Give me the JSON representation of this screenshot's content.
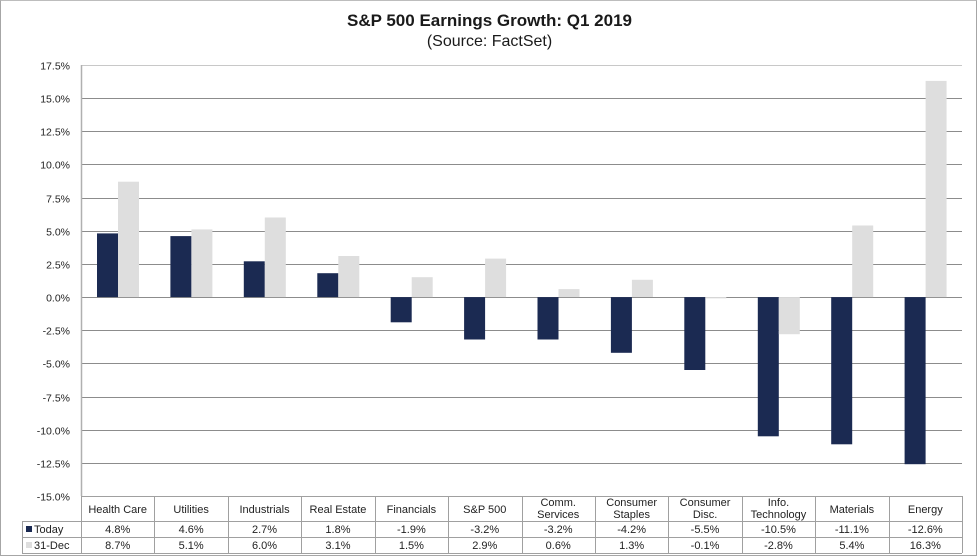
{
  "chart_data": {
    "type": "bar",
    "title": "S&P 500 Earnings Growth: Q1 2019",
    "subtitle": "(Source: FactSet)",
    "xlabel": "",
    "ylabel": "",
    "ylim": [
      -15.0,
      17.5
    ],
    "ytick_step": 2.5,
    "yticks": [
      "17.5%",
      "15.0%",
      "12.5%",
      "10.0%",
      "7.5%",
      "5.0%",
      "2.5%",
      "0.0%",
      "-2.5%",
      "-5.0%",
      "-7.5%",
      "-10.0%",
      "-12.5%",
      "-15.0%"
    ],
    "grid": true,
    "legend_placement": "data-table-left",
    "categories": [
      [
        "Health Care"
      ],
      [
        "Utilities"
      ],
      [
        "Industrials"
      ],
      [
        "Real Estate"
      ],
      [
        "Financials"
      ],
      [
        "S&P 500"
      ],
      [
        "Comm.",
        "Services"
      ],
      [
        "Consumer",
        "Staples"
      ],
      [
        "Consumer",
        "Disc."
      ],
      [
        "Info.",
        "Technology"
      ],
      [
        "Materials"
      ],
      [
        "Energy"
      ]
    ],
    "series": [
      {
        "name": "Today",
        "color": "#1b2a52",
        "values": [
          4.8,
          4.6,
          2.7,
          1.8,
          -1.9,
          -3.2,
          -3.2,
          -4.2,
          -5.5,
          -10.5,
          -11.1,
          -12.6
        ],
        "labels": [
          "4.8%",
          "4.6%",
          "2.7%",
          "1.8%",
          "-1.9%",
          "-3.2%",
          "-3.2%",
          "-4.2%",
          "-5.5%",
          "-10.5%",
          "-11.1%",
          "-12.6%"
        ]
      },
      {
        "name": "31-Dec",
        "color": "#dedede",
        "values": [
          8.7,
          5.1,
          6.0,
          3.1,
          1.5,
          2.9,
          0.6,
          1.3,
          -0.1,
          -2.8,
          5.4,
          16.3
        ],
        "labels": [
          "8.7%",
          "5.1%",
          "6.0%",
          "3.1%",
          "1.5%",
          "2.9%",
          "0.6%",
          "1.3%",
          "-0.1%",
          "-2.8%",
          "5.4%",
          "16.3%"
        ]
      }
    ]
  }
}
